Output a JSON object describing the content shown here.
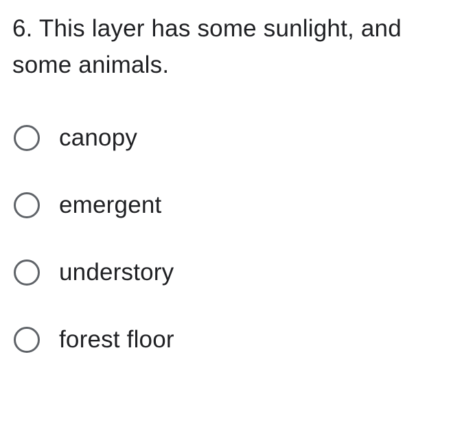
{
  "question": {
    "number": "6.",
    "text": "This layer has some sunlight, and some animals.",
    "full_text": "6.  This layer has some sunlight, and some animals."
  },
  "options": [
    {
      "label": "canopy",
      "selected": false
    },
    {
      "label": "emergent",
      "selected": false
    },
    {
      "label": "understory",
      "selected": false
    },
    {
      "label": "forest floor",
      "selected": false
    }
  ],
  "styling": {
    "text_color": "#202124",
    "radio_border_color": "#5f6368",
    "background_color": "#ffffff",
    "font_size": 35,
    "radio_size": 38,
    "radio_border_width": 3
  }
}
